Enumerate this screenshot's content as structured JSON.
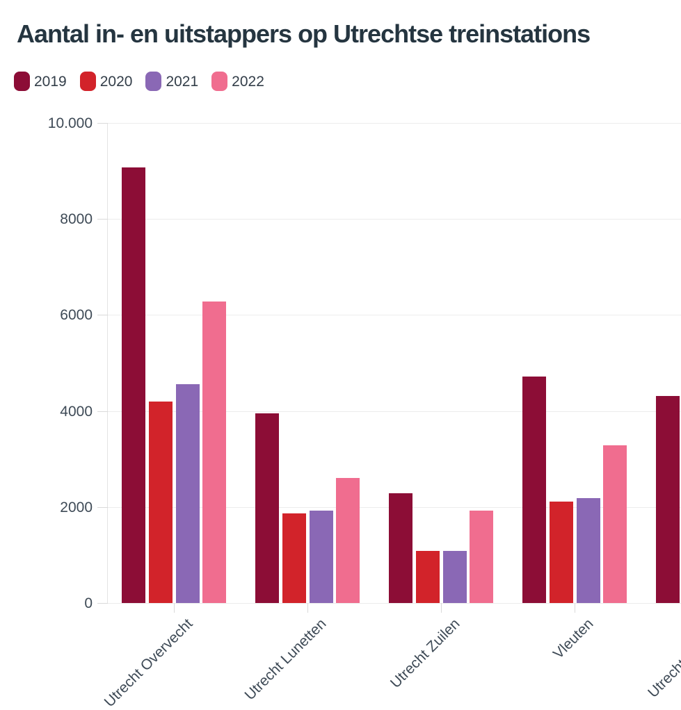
{
  "page": {
    "title": "Aantal in- en uitstappers op Utrechtse treinstations"
  },
  "chart_data": {
    "type": "bar",
    "title": "Aantal in- en uitstappers op Utrechtse treinstations",
    "categories": [
      "Utrecht Overvecht",
      "Utrecht Lunetten",
      "Utrecht Zuilen",
      "Vleuten",
      "Utrecht Terwijde"
    ],
    "series": [
      {
        "name": "2019",
        "color": "#8C0D36",
        "values": [
          9080,
          3950,
          2290,
          4720,
          4310
        ]
      },
      {
        "name": "2020",
        "color": "#D2232A",
        "values": [
          4200,
          1860,
          1080,
          2120,
          null
        ]
      },
      {
        "name": "2021",
        "color": "#8A68B5",
        "values": [
          4560,
          1920,
          1080,
          2190,
          null
        ]
      },
      {
        "name": "2022",
        "color": "#F06D8F",
        "values": [
          6280,
          2610,
          1920,
          3290,
          null
        ]
      }
    ],
    "ylim": [
      0,
      10000
    ],
    "y_tick_labels": [
      "10.000",
      "8000",
      "6000",
      "4000",
      "2000",
      "0"
    ],
    "grid": true,
    "legend_position": "top-left",
    "note_clipping": "title, fifth category group and rotated x labels are clipped by the viewport"
  }
}
